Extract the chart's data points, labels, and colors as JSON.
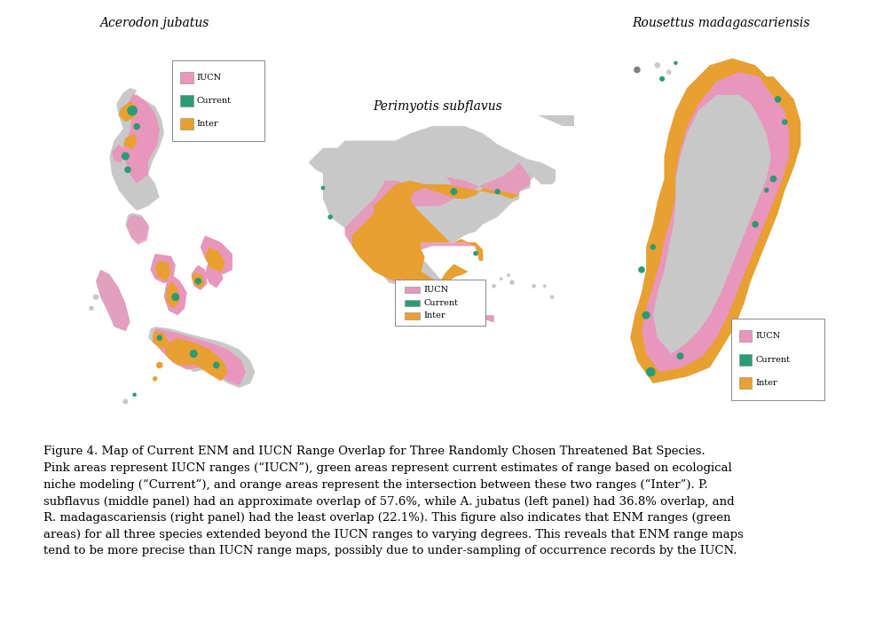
{
  "title_left": "Acerodon jubatus",
  "title_mid": "Perimyotis subflavus",
  "title_right": "Rousettus madagascariensis",
  "color_iucn": "#E896BB",
  "color_current": "#2A9B74",
  "color_inter": "#E8A030",
  "color_land": "#C8C8C8",
  "color_bg": "#FFFFFF",
  "legend_labels": [
    "IUCN",
    "Current",
    "Inter"
  ],
  "figsize": [
    9.86,
    7.02
  ],
  "dpi": 100,
  "title_fontsize": 10,
  "caption_fontsize": 9.5,
  "legend_fontsize": 7
}
